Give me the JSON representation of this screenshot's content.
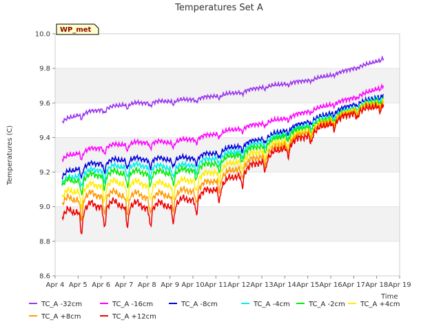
{
  "chart_data": {
    "type": "line",
    "title": "Temperatures Set A",
    "ylabel": "Temperatures (C)",
    "xlabel": "Time",
    "site_label": "WP_met",
    "ylim": [
      8.6,
      10.0
    ],
    "xlim": [
      4,
      19
    ],
    "y_ticks": [
      8.6,
      8.8,
      9.0,
      9.2,
      9.4,
      9.6,
      9.8,
      10.0
    ],
    "y_tick_labels": [
      "8.6",
      "8.8",
      "9.0",
      "9.2",
      "9.4",
      "9.6",
      "9.8",
      "10.0"
    ],
    "x_ticks": [
      4,
      5,
      6,
      7,
      8,
      9,
      10,
      11,
      12,
      13,
      14,
      15,
      16,
      17,
      18,
      19
    ],
    "x_tick_labels": [
      "Apr 4",
      "Apr 5",
      "Apr 6",
      "Apr 7",
      "Apr 8",
      "Apr 9",
      "Apr 10",
      "Apr 11",
      "Apr 12",
      "Apr 13",
      "Apr 14",
      "Apr 15",
      "Apr 16",
      "Apr 17",
      "Apr 18",
      "Apr 19"
    ],
    "grid": "horizontal bands",
    "legend_position": "bottom",
    "series": [
      {
        "name": "TC_A -32cm",
        "color": "#9933ee",
        "x": [
          4.3,
          5,
          6,
          7,
          8,
          9,
          10,
          11,
          12,
          13,
          14,
          15,
          16,
          17,
          18,
          18.3
        ],
        "values": [
          9.49,
          9.53,
          9.56,
          9.59,
          9.6,
          9.61,
          9.62,
          9.64,
          9.66,
          9.69,
          9.71,
          9.73,
          9.76,
          9.8,
          9.84,
          9.86
        ]
      },
      {
        "name": "TC_A -16cm",
        "color": "#ff00ff",
        "x": [
          4.3,
          5,
          6,
          7,
          8,
          9,
          10,
          11,
          12,
          13,
          14,
          15,
          16,
          17,
          18,
          18.3
        ],
        "values": [
          9.27,
          9.31,
          9.34,
          9.36,
          9.37,
          9.37,
          9.39,
          9.42,
          9.45,
          9.48,
          9.51,
          9.55,
          9.59,
          9.63,
          9.68,
          9.7
        ]
      },
      {
        "name": "TC_A -8cm",
        "color": "#0000dd",
        "x": [
          4.3,
          5,
          6,
          7,
          8,
          9,
          10,
          11,
          12,
          13,
          14,
          15,
          16,
          17,
          18,
          18.3
        ],
        "values": [
          9.17,
          9.22,
          9.25,
          9.27,
          9.27,
          9.27,
          9.28,
          9.31,
          9.35,
          9.39,
          9.44,
          9.49,
          9.54,
          9.59,
          9.63,
          9.65
        ]
      },
      {
        "name": "TC_A -4cm",
        "color": "#00eeee",
        "x": [
          4.3,
          5,
          6,
          7,
          8,
          9,
          10,
          11,
          12,
          13,
          14,
          15,
          16,
          17,
          18,
          18.3
        ],
        "values": [
          9.13,
          9.18,
          9.21,
          9.23,
          9.23,
          9.22,
          9.24,
          9.28,
          9.32,
          9.37,
          9.42,
          9.47,
          9.52,
          9.57,
          9.62,
          9.63
        ]
      },
      {
        "name": "TC_A -2cm",
        "color": "#00ee00",
        "x": [
          4.3,
          5,
          6,
          7,
          8,
          9,
          10,
          11,
          12,
          13,
          14,
          15,
          16,
          17,
          18,
          18.3
        ],
        "values": [
          9.12,
          9.15,
          9.18,
          9.19,
          9.19,
          9.19,
          9.21,
          9.25,
          9.3,
          9.35,
          9.41,
          9.46,
          9.51,
          9.56,
          9.61,
          9.62
        ]
      },
      {
        "name": "TC_A +4cm",
        "color": "#ffee00",
        "x": [
          4.3,
          5,
          6,
          7,
          8,
          9,
          10,
          11,
          12,
          13,
          14,
          15,
          16,
          17,
          18,
          18.3
        ],
        "values": [
          9.05,
          9.09,
          9.12,
          9.13,
          9.12,
          9.12,
          9.15,
          9.2,
          9.26,
          9.32,
          9.38,
          9.44,
          9.5,
          9.56,
          9.6,
          9.61
        ]
      },
      {
        "name": "TC_A +8cm",
        "color": "#ff9900",
        "x": [
          4.3,
          5,
          6,
          7,
          8,
          9,
          10,
          11,
          12,
          13,
          14,
          15,
          16,
          17,
          18,
          18.3
        ],
        "values": [
          9.01,
          9.04,
          9.06,
          9.06,
          9.05,
          9.06,
          9.09,
          9.15,
          9.22,
          9.29,
          9.36,
          9.43,
          9.49,
          9.55,
          9.59,
          9.6
        ]
      },
      {
        "name": "TC_A +12cm",
        "color": "#ee0000",
        "x": [
          4.3,
          5,
          6,
          7,
          8,
          9,
          10,
          11,
          12,
          13,
          14,
          15,
          16,
          17,
          18,
          18.3
        ],
        "values": [
          8.93,
          8.97,
          9.0,
          9.0,
          8.99,
          9.0,
          9.04,
          9.1,
          9.18,
          9.26,
          9.34,
          9.41,
          9.48,
          9.54,
          9.58,
          9.59
        ]
      }
    ]
  }
}
